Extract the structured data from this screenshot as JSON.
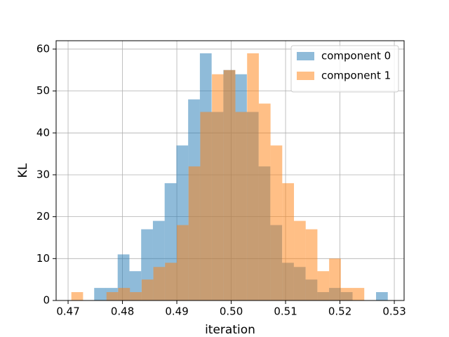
{
  "chart_data": {
    "type": "histogram",
    "xlabel": "iteration",
    "ylabel": "KL",
    "xlim": [
      0.4678,
      0.5318
    ],
    "ylim": [
      0,
      62
    ],
    "xticks": [
      0.47,
      0.48,
      0.49,
      {
        "value": 0.5,
        "label": "0.50"
      },
      0.51,
      0.52,
      0.53
    ],
    "yticks": [
      0,
      10,
      20,
      30,
      40,
      50,
      60
    ],
    "grid": true,
    "legend": "upper right",
    "series": [
      {
        "name": "component 0",
        "color": "#1f77b4",
        "alpha": 0.5,
        "bins": [
          0.4748,
          0.47696,
          0.47912,
          0.48128,
          0.48344,
          0.4856,
          0.48776,
          0.48992,
          0.49208,
          0.49424,
          0.4964,
          0.49856,
          0.50072,
          0.50288,
          0.50504,
          0.5072,
          0.50936,
          0.51152,
          0.51368,
          0.51584,
          0.518,
          0.52016,
          0.52232,
          0.52448,
          0.52664,
          0.5288
        ],
        "values": [
          3,
          3,
          11,
          7,
          17,
          19,
          28,
          37,
          48,
          59,
          45,
          55,
          54,
          45,
          32,
          18,
          9,
          8,
          5,
          2,
          3,
          2,
          0,
          0,
          2
        ]
      },
      {
        "name": "component 1",
        "color": "#ff7f0e",
        "alpha": 0.5,
        "bins": [
          0.4706,
          0.472755,
          0.47491,
          0.477065,
          0.47922,
          0.481375,
          0.48353,
          0.485685,
          0.48784,
          0.489995,
          0.49215,
          0.494305,
          0.49646,
          0.498615,
          0.50077,
          0.502925,
          0.50508,
          0.507235,
          0.50939,
          0.511545,
          0.5137,
          0.515855,
          0.51801,
          0.520165,
          0.52232,
          0.524475
        ],
        "values": [
          2,
          0,
          0,
          2,
          3,
          2,
          5,
          8,
          9,
          18,
          32,
          45,
          54,
          55,
          45,
          59,
          47,
          37,
          28,
          19,
          17,
          7,
          10,
          3,
          3
        ]
      }
    ]
  }
}
